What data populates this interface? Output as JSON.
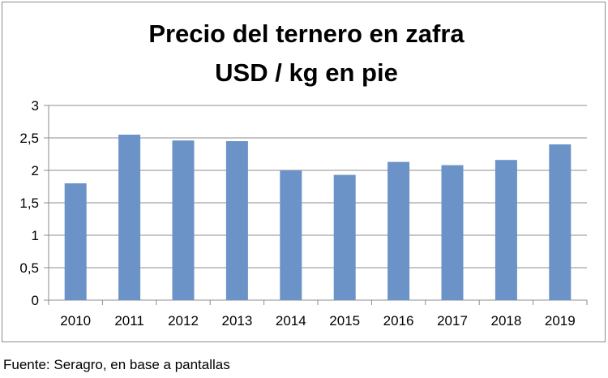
{
  "chart_data": {
    "type": "bar",
    "title": "Precio del ternero en zafra",
    "subtitle": "USD / kg en pie",
    "categories": [
      "2010",
      "2011",
      "2012",
      "2013",
      "2014",
      "2015",
      "2016",
      "2017",
      "2018",
      "2019"
    ],
    "values": [
      1.8,
      2.55,
      2.46,
      2.45,
      2.0,
      1.93,
      2.13,
      2.08,
      2.16,
      2.4
    ],
    "ylim": [
      0,
      3
    ],
    "yticks": [
      0,
      0.5,
      1,
      1.5,
      2,
      2.5,
      3
    ],
    "ytick_labels": [
      "0",
      "0,5",
      "1",
      "1,5",
      "2",
      "2,5",
      "3"
    ],
    "grid": true,
    "legend": "none",
    "bar_color": "#6b93c7"
  },
  "footer": {
    "source": "Fuente: Seragro, en base a pantallas"
  }
}
